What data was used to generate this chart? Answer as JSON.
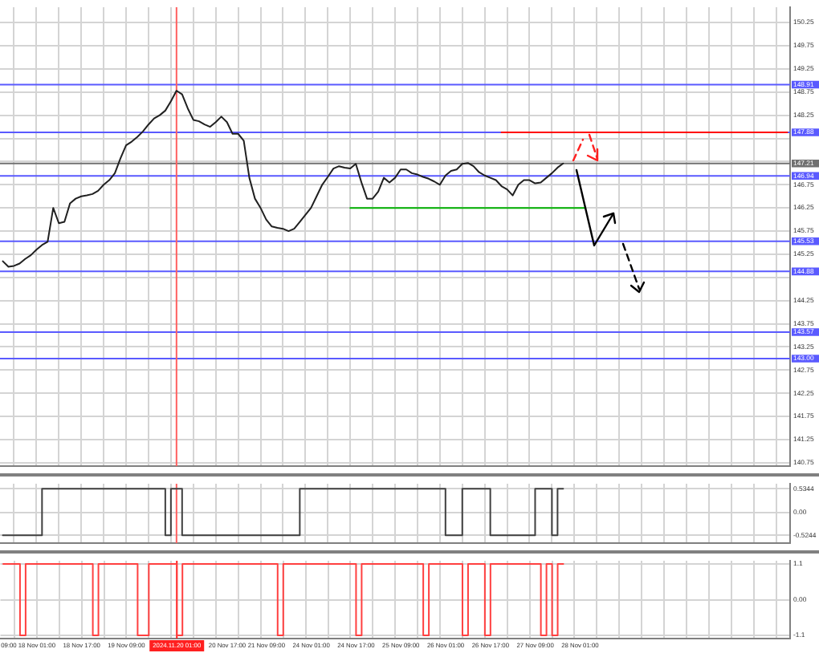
{
  "chart_data": [
    {
      "type": "line",
      "categories": [
        null,
        "09:00",
        null,
        null,
        null,
        null,
        "18 Nov 01:00",
        null,
        null,
        null,
        null,
        null,
        null,
        null,
        "18 Nov 17:00",
        null,
        null,
        null,
        null,
        null,
        null,
        null,
        "19 Nov 09:00",
        null,
        null,
        null,
        null,
        null,
        null,
        null,
        null,
        "2024.11.20 01:00",
        null,
        null,
        null,
        null,
        null,
        null,
        null,
        null,
        "20 Nov 17:00",
        null,
        null,
        null,
        null,
        null,
        null,
        "21 Nov 09:00",
        null,
        null,
        null,
        null,
        null,
        null,
        null,
        "24 Nov 01:00",
        null,
        null,
        null,
        null,
        null,
        null,
        null,
        "24 Nov 17:00",
        null,
        null,
        null,
        null,
        null,
        null,
        null,
        "25 Nov 09:00",
        null,
        null,
        null,
        null,
        null,
        null,
        null,
        "26 Nov 01:00",
        null,
        null,
        null,
        null,
        null,
        null,
        null,
        "26 Nov 17:00",
        null,
        null,
        null,
        null,
        null,
        null,
        null,
        "27 Nov 09:00",
        null,
        null,
        null,
        null,
        null,
        null,
        null,
        "28 Nov 01:00",
        null,
        null,
        null,
        null,
        null,
        null,
        null,
        null,
        null,
        null,
        null,
        null,
        null,
        null,
        null,
        null,
        null,
        null,
        null,
        null,
        null,
        null,
        null,
        null,
        null,
        null,
        null,
        null,
        null,
        null,
        null,
        null,
        null,
        null,
        null,
        null,
        null
      ],
      "series": [
        {
          "color": "#202020",
          "values": [
            145.1,
            144.98,
            145.0,
            145.05,
            145.15,
            145.23,
            145.35,
            145.45,
            145.52,
            146.25,
            145.92,
            145.95,
            146.35,
            146.45,
            146.5,
            146.52,
            146.55,
            146.62,
            146.75,
            146.85,
            147.0,
            147.32,
            147.6,
            147.68,
            147.78,
            147.9,
            148.05,
            148.18,
            148.25,
            148.35,
            148.55,
            148.78,
            148.7,
            148.4,
            148.15,
            148.12,
            148.05,
            148.0,
            148.1,
            148.22,
            148.1,
            147.85,
            147.85,
            147.7,
            146.9,
            146.45,
            146.25,
            146.0,
            145.85,
            145.82,
            145.8,
            145.75,
            145.8,
            145.95,
            146.1,
            146.25,
            146.5,
            146.75,
            146.92,
            147.1,
            147.15,
            147.12,
            147.1,
            147.2,
            146.8,
            146.45,
            146.45,
            146.6,
            146.9,
            146.8,
            146.9,
            147.08,
            147.08,
            147.0,
            146.97,
            146.92,
            146.88,
            146.82,
            146.75,
            146.95,
            147.05,
            147.08,
            147.2,
            147.22,
            147.15,
            147.02,
            146.95,
            146.9,
            146.85,
            146.72,
            146.65,
            146.52,
            146.75,
            146.85,
            146.85,
            146.78,
            146.8,
            146.9,
            147.0,
            147.12,
            147.21,
            null,
            null,
            null,
            null,
            null,
            null,
            null,
            null,
            null,
            null,
            null,
            null,
            null,
            null,
            null,
            null,
            null,
            null,
            null,
            null,
            null,
            null,
            null,
            null,
            null,
            null,
            null,
            null,
            null,
            null,
            null,
            null,
            null,
            null,
            null,
            null,
            null,
            null,
            null,
            null
          ]
        },
        {
          "color": "#00b000",
          "values": [
            null,
            null,
            null,
            null,
            null,
            null,
            null,
            null,
            null,
            null,
            null,
            null,
            null,
            null,
            null,
            null,
            null,
            null,
            null,
            null,
            null,
            null,
            null,
            null,
            null,
            null,
            null,
            null,
            null,
            null,
            null,
            null,
            null,
            null,
            null,
            null,
            null,
            null,
            null,
            null,
            null,
            null,
            null,
            null,
            null,
            null,
            null,
            null,
            null,
            null,
            null,
            null,
            null,
            null,
            null,
            null,
            null,
            null,
            null,
            null,
            null,
            null,
            146.25,
            146.25,
            146.25,
            146.25,
            146.25,
            146.25,
            146.25,
            146.25,
            146.25,
            146.25,
            146.25,
            146.25,
            146.25,
            146.25,
            146.25,
            146.25,
            146.25,
            146.25,
            146.25,
            146.25,
            146.25,
            146.25,
            146.25,
            146.25,
            146.25,
            146.25,
            146.25,
            146.25,
            146.25,
            146.25,
            146.25,
            146.25,
            146.25,
            146.25,
            146.25,
            146.25,
            146.25,
            146.25,
            146.25,
            146.25,
            146.25,
            146.25,
            146.25,
            null,
            null,
            null,
            null,
            null,
            null,
            null,
            null,
            null,
            null,
            null,
            null,
            null,
            null,
            null,
            null,
            null,
            null,
            null,
            null,
            null,
            null,
            null,
            null,
            null,
            null,
            null,
            null,
            null,
            null,
            null,
            null,
            null,
            null,
            null,
            null
          ]
        },
        {
          "color": "#ff0000",
          "values": [
            null,
            null,
            null,
            null,
            null,
            null,
            null,
            null,
            null,
            null,
            null,
            null,
            null,
            null,
            null,
            null,
            null,
            null,
            null,
            null,
            null,
            null,
            null,
            null,
            null,
            null,
            null,
            null,
            null,
            null,
            null,
            null,
            null,
            null,
            null,
            null,
            null,
            null,
            null,
            null,
            null,
            null,
            null,
            null,
            null,
            null,
            null,
            null,
            null,
            null,
            null,
            null,
            null,
            null,
            null,
            null,
            null,
            null,
            null,
            null,
            null,
            null,
            null,
            null,
            null,
            null,
            null,
            null,
            null,
            null,
            null,
            null,
            null,
            null,
            null,
            null,
            null,
            null,
            null,
            null,
            null,
            null,
            null,
            null,
            null,
            null,
            null,
            null,
            null,
            147.88,
            147.88,
            147.88,
            147.88,
            147.88,
            147.88,
            147.88,
            147.88,
            147.88,
            147.88,
            147.88,
            147.88,
            147.88,
            147.88,
            147.88,
            147.88,
            147.88,
            147.88,
            147.88,
            147.88,
            147.88,
            147.88,
            147.88,
            147.88,
            147.88,
            147.88,
            147.88,
            147.88,
            147.88,
            147.88,
            147.88,
            147.88,
            147.88,
            147.88,
            147.88,
            147.88,
            147.88,
            147.88,
            147.88,
            147.88,
            147.88,
            147.88,
            147.88,
            147.88,
            147.88,
            147.88,
            147.88,
            147.88,
            147.88,
            147.88,
            147.88,
            147.88
          ]
        }
      ],
      "ylim": [
        140.68,
        150.58
      ],
      "yticks": [
        150.25,
        149.75,
        149.25,
        148.75,
        148.25,
        {
          "value": 147.75,
          "label": null
        },
        {
          "value": 147.25,
          "label": null
        },
        146.75,
        146.25,
        145.75,
        145.25,
        {
          "value": 144.75,
          "label": null
        },
        144.25,
        143.75,
        143.25,
        142.75,
        142.25,
        141.75,
        141.25,
        140.75
      ],
      "ref_lines": [
        {
          "axis": "y",
          "value": 148.91,
          "label": "148.91",
          "color": "#5a5aff"
        },
        {
          "axis": "y",
          "value": 147.88,
          "label": "147.88",
          "color": "#5a5aff"
        },
        {
          "axis": "y",
          "value": 147.21,
          "label": "147.21",
          "color": "#707070"
        },
        {
          "axis": "y",
          "value": 146.94,
          "label": "146.94",
          "color": "#5a5aff"
        },
        {
          "axis": "y",
          "value": 145.53,
          "label": "145.53",
          "color": "#5a5aff"
        },
        {
          "axis": "y",
          "value": 144.88,
          "label": "144.88",
          "color": "#5a5aff"
        },
        {
          "axis": "y",
          "value": 143.57,
          "label": "143.57",
          "color": "#5a5aff"
        },
        {
          "axis": "y",
          "value": 143.0,
          "label": "143.00",
          "color": "#5a5aff"
        },
        {
          "axis": "x",
          "value": "2024.11.20 01:00",
          "color": "#ff6060"
        }
      ],
      "grid": true,
      "tick_labels": "y"
    },
    {
      "type": "step",
      "categories": [
        null,
        "09:00",
        null,
        null,
        null,
        null,
        "18 Nov 01:00",
        null,
        null,
        null,
        null,
        null,
        null,
        null,
        "18 Nov 17:00",
        null,
        null,
        null,
        null,
        null,
        null,
        null,
        "19 Nov 09:00",
        null,
        null,
        null,
        null,
        null,
        null,
        null,
        null,
        "2024.11.20 01:00",
        null,
        null,
        null,
        null,
        null,
        null,
        null,
        null,
        "20 Nov 17:00",
        null,
        null,
        null,
        null,
        null,
        null,
        "21 Nov 09:00",
        null,
        null,
        null,
        null,
        null,
        null,
        null,
        "24 Nov 01:00",
        null,
        null,
        null,
        null,
        null,
        null,
        null,
        "24 Nov 17:00",
        null,
        null,
        null,
        null,
        null,
        null,
        null,
        "25 Nov 09:00",
        null,
        null,
        null,
        null,
        null,
        null,
        null,
        "26 Nov 01:00",
        null,
        null,
        null,
        null,
        null,
        null,
        null,
        "26 Nov 17:00",
        null,
        null,
        null,
        null,
        null,
        null,
        null,
        "27 Nov 09:00",
        null,
        null,
        null,
        null,
        null,
        null,
        null,
        "28 Nov 01:00",
        null,
        null,
        null,
        null,
        null,
        null,
        null,
        null,
        null,
        null,
        null,
        null,
        null,
        null,
        null,
        null,
        null,
        null,
        null,
        null,
        null,
        null,
        null,
        null,
        null,
        null,
        null,
        null,
        null,
        null,
        null,
        null,
        null,
        null,
        null,
        null,
        null
      ],
      "series": [
        {
          "color": "#404040",
          "values": [
            -0.5244,
            -0.5244,
            -0.5244,
            -0.5244,
            -0.5244,
            -0.5244,
            -0.5244,
            0.5344,
            0.5344,
            0.5344,
            0.5344,
            0.5344,
            0.5344,
            0.5344,
            0.5344,
            0.5344,
            0.5344,
            0.5344,
            0.5344,
            0.5344,
            0.5344,
            0.5344,
            0.5344,
            0.5344,
            0.5344,
            0.5344,
            0.5344,
            0.5344,
            0.5344,
            -0.5244,
            0.5344,
            0.5344,
            -0.5244,
            -0.5244,
            -0.5244,
            -0.5244,
            -0.5244,
            -0.5244,
            -0.5244,
            -0.5244,
            -0.5244,
            -0.5244,
            -0.5244,
            -0.5244,
            -0.5244,
            -0.5244,
            -0.5244,
            -0.5244,
            -0.5244,
            -0.5244,
            -0.5244,
            -0.5244,
            -0.5244,
            0.5344,
            0.5344,
            0.5344,
            0.5344,
            0.5344,
            0.5344,
            0.5344,
            0.5344,
            0.5344,
            0.5344,
            0.5344,
            0.5344,
            0.5344,
            0.5344,
            0.5344,
            0.5344,
            0.5344,
            0.5344,
            0.5344,
            0.5344,
            0.5344,
            0.5344,
            0.5344,
            0.5344,
            0.5344,
            0.5344,
            -0.5244,
            -0.5244,
            -0.5244,
            0.5344,
            0.5344,
            0.5344,
            0.5344,
            0.5344,
            -0.5244,
            -0.5244,
            -0.5244,
            -0.5244,
            -0.5244,
            -0.5244,
            -0.5244,
            -0.5244,
            0.5344,
            0.5344,
            0.5344,
            -0.5244,
            0.5344,
            0.5344,
            null,
            null,
            null,
            null,
            null,
            null,
            null,
            null,
            null,
            null,
            null,
            null,
            null,
            null,
            null,
            null,
            null,
            null,
            null,
            null,
            null,
            null,
            null,
            null,
            null,
            null,
            null,
            null,
            null,
            null,
            null,
            null,
            null,
            null,
            null,
            null,
            null,
            null,
            null,
            null
          ]
        }
      ],
      "ylim": [
        -0.7,
        0.65
      ],
      "yticks": [
        0.5344,
        {
          "value": 0,
          "label": "0.00"
        },
        -0.5244
      ],
      "ref_lines": [
        {
          "axis": "x",
          "value": "2024.11.20 01:00",
          "color": "#ff6060"
        }
      ],
      "grid": true,
      "tick_labels": "y"
    },
    {
      "type": "step",
      "categories": [
        null,
        "09:00",
        null,
        null,
        null,
        null,
        "18 Nov 01:00",
        null,
        null,
        null,
        null,
        null,
        null,
        null,
        "18 Nov 17:00",
        null,
        null,
        null,
        null,
        null,
        null,
        null,
        "19 Nov 09:00",
        null,
        null,
        null,
        null,
        null,
        null,
        null,
        null,
        "2024.11.20 01:00",
        null,
        null,
        null,
        null,
        null,
        null,
        null,
        null,
        "20 Nov 17:00",
        null,
        null,
        null,
        null,
        null,
        null,
        "21 Nov 09:00",
        null,
        null,
        null,
        null,
        null,
        null,
        null,
        "24 Nov 01:00",
        null,
        null,
        null,
        null,
        null,
        null,
        null,
        "24 Nov 17:00",
        null,
        null,
        null,
        null,
        null,
        null,
        null,
        "25 Nov 09:00",
        null,
        null,
        null,
        null,
        null,
        null,
        null,
        "26 Nov 01:00",
        null,
        null,
        null,
        null,
        null,
        null,
        null,
        "26 Nov 17:00",
        null,
        null,
        null,
        null,
        null,
        null,
        null,
        "27 Nov 09:00",
        null,
        null,
        null,
        null,
        null,
        null,
        null,
        "28 Nov 01:00",
        null,
        null,
        null,
        null,
        null,
        null,
        null,
        null,
        null,
        null,
        null,
        null,
        null,
        null,
        null,
        null,
        null,
        null,
        null,
        null,
        null,
        null,
        null,
        null,
        null,
        null,
        null,
        null,
        null,
        null,
        null,
        null,
        null,
        null,
        null,
        null,
        null
      ],
      "series": [
        {
          "color": "#ff4040",
          "values": [
            1.1,
            1.1,
            1.1,
            -1.1,
            1.1,
            1.1,
            1.1,
            1.1,
            1.1,
            1.1,
            1.1,
            1.1,
            1.1,
            1.1,
            1.1,
            1.1,
            -1.1,
            1.1,
            1.1,
            1.1,
            1.1,
            1.1,
            1.1,
            1.1,
            -1.1,
            -1.1,
            1.1,
            1.1,
            1.1,
            1.1,
            1.1,
            -1.1,
            1.1,
            1.1,
            1.1,
            1.1,
            1.1,
            1.1,
            1.1,
            1.1,
            1.1,
            1.1,
            1.1,
            1.1,
            1.1,
            1.1,
            1.1,
            1.1,
            1.1,
            -1.1,
            1.1,
            1.1,
            1.1,
            1.1,
            1.1,
            1.1,
            1.1,
            1.1,
            1.1,
            1.1,
            1.1,
            1.1,
            1.1,
            -1.1,
            1.1,
            1.1,
            1.1,
            1.1,
            1.1,
            1.1,
            1.1,
            1.1,
            1.1,
            1.1,
            1.1,
            -1.1,
            1.1,
            1.1,
            1.1,
            1.1,
            1.1,
            1.1,
            -1.1,
            1.1,
            1.1,
            1.1,
            -1.1,
            1.1,
            1.1,
            1.1,
            1.1,
            1.1,
            1.1,
            1.1,
            1.1,
            1.1,
            -1.1,
            1.1,
            -1.1,
            1.1,
            1.1,
            null,
            null,
            null,
            null,
            null,
            null,
            null,
            null,
            null,
            null,
            null,
            null,
            null,
            null,
            null,
            null,
            null,
            null,
            null,
            null,
            null,
            null,
            null,
            null,
            null,
            null,
            null,
            null,
            null,
            null,
            null,
            null,
            null,
            null,
            null,
            null,
            null,
            null,
            null,
            null
          ]
        }
      ],
      "ylim": [
        -1.2,
        1.2
      ],
      "yticks": [
        1.1,
        {
          "value": 0,
          "label": "0.00"
        },
        -1.1
      ],
      "ref_lines": [
        {
          "axis": "x",
          "value": "2024.11.20 01:00",
          "color": "#ff2020"
        }
      ],
      "grid": true
    }
  ]
}
